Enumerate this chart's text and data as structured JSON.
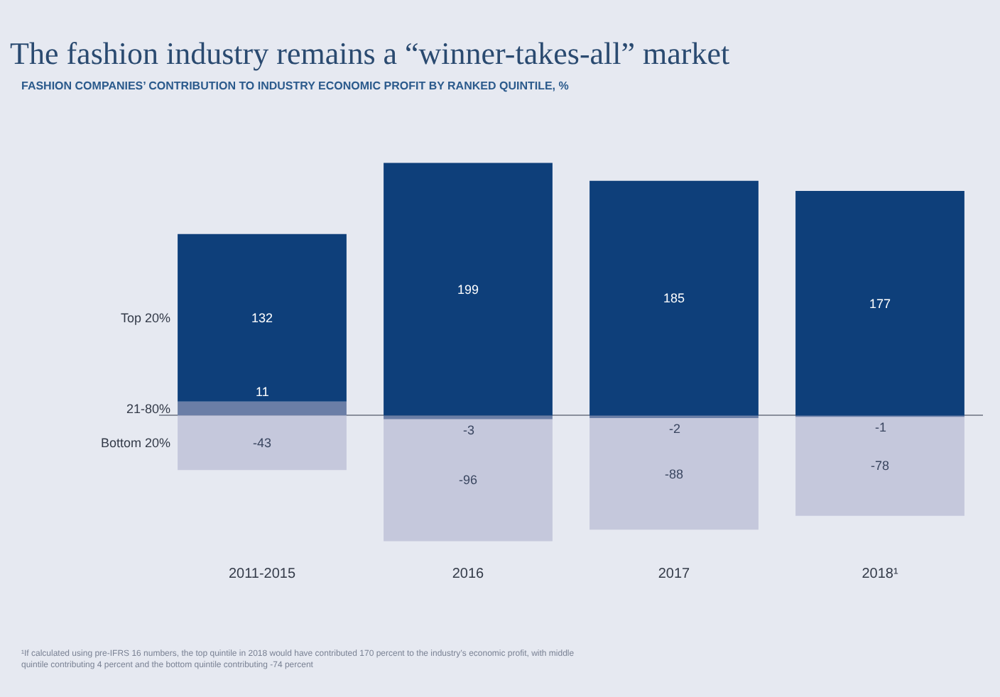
{
  "chart_data": {
    "type": "bar",
    "title": "The fashion industry remains a “winner-takes-all” market",
    "subtitle": "FASHION COMPANIES’ CONTRIBUTION TO INDUSTRY ECONOMIC PROFIT BY RANKED QUINTILE, %",
    "categories": [
      "2011-2015",
      "2016",
      "2017",
      "2018¹"
    ],
    "stacked": true,
    "data_labels": true,
    "legend": false,
    "grid": false,
    "series": [
      {
        "name": "21-80%",
        "color": "#6b7ea6",
        "values": [
          11,
          -3,
          -2,
          -1
        ]
      },
      {
        "name": "Top 20%",
        "color": "#0e3f7a",
        "values": [
          132,
          199,
          185,
          177
        ]
      },
      {
        "name": "Bottom 20%",
        "color": "#c5c8dc",
        "values": [
          -43,
          -96,
          -88,
          -78
        ]
      }
    ],
    "annotations": [
      "¹If calculated using pre-IFRS 16 numbers, the top quintile in 2018 would have contributed 170 percent to the industry’s economic profit, with middle quintile contributing 4 percent and the bottom quintile contributing -74 percent"
    ]
  }
}
